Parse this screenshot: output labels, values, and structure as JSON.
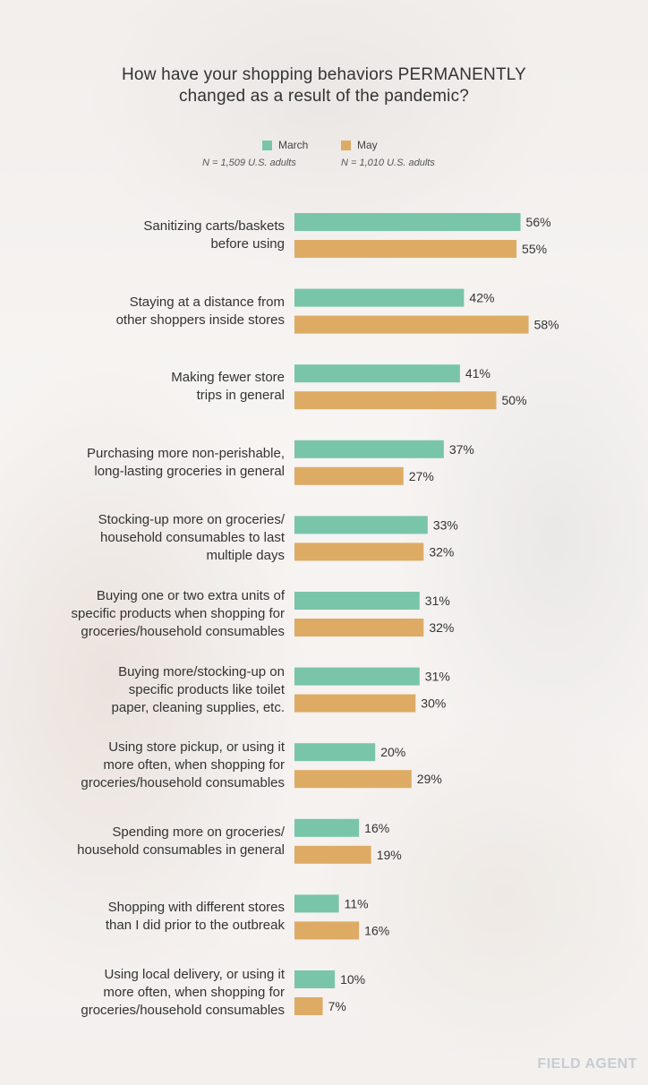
{
  "title_line1": "How have your shopping behaviors PERMANENTLY",
  "title_line2": "changed as a result of the pandemic?",
  "legend": {
    "march_label": "March",
    "march_n": "N = 1,509 U.S. adults",
    "may_label": "May",
    "may_n": "N = 1,010 U.S. adults"
  },
  "logo_text": "FIELD AGENT",
  "colors": {
    "march": "#79c5aa",
    "may": "#ddab64",
    "text": "#333333"
  },
  "chart_data": {
    "type": "bar",
    "orientation": "horizontal",
    "title": "How have your shopping behaviors PERMANENTLY changed as a result of the pandemic?",
    "unit": "%",
    "categories": [
      [
        "Sanitizing carts/baskets",
        "before using"
      ],
      [
        "Staying at a distance from",
        "other shoppers inside stores"
      ],
      [
        "Making fewer store",
        "trips in general"
      ],
      [
        "Purchasing more non-perishable,",
        "long-lasting groceries in general"
      ],
      [
        "Stocking-up more on groceries/",
        "household consumables to last",
        "multiple days"
      ],
      [
        "Buying one or two extra units of",
        "specific products when shopping for",
        "groceries/household consumables"
      ],
      [
        "Buying more/stocking-up on",
        "specific products like toilet",
        "paper, cleaning supplies, etc."
      ],
      [
        "Using store pickup, or using it",
        "more often, when shopping for",
        "groceries/household consumables"
      ],
      [
        "Spending more on groceries/",
        "household consumables in general"
      ],
      [
        "Shopping with different stores",
        "than I did prior to the outbreak"
      ],
      [
        "Using local delivery, or using it",
        "more often, when shopping for",
        "groceries/household consumables"
      ]
    ],
    "series": [
      {
        "name": "March",
        "values": [
          56,
          42,
          41,
          37,
          33,
          31,
          31,
          20,
          16,
          11,
          10
        ]
      },
      {
        "name": "May",
        "values": [
          55,
          58,
          50,
          27,
          32,
          32,
          30,
          29,
          19,
          16,
          7
        ]
      }
    ],
    "xlim": [
      0,
      58
    ],
    "grid": false,
    "legend": "top-center"
  }
}
